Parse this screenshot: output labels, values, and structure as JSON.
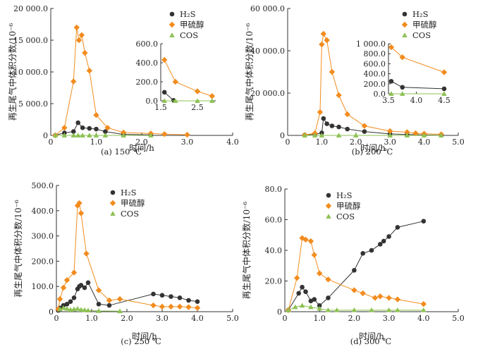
{
  "colors": {
    "h2s": "#333333",
    "methanethiol": "#f28c1e",
    "cos": "#8cc152",
    "axis": "#333333"
  },
  "legend_labels": [
    "H₂S",
    "甲硫醇",
    "COS"
  ],
  "chart_data": [
    {
      "type": "line",
      "caption": "(a) 150 ℃",
      "xlabel": "时间/h",
      "ylabel": "再生尾气中体积分数/10⁻⁶",
      "xlim": [
        0,
        4
      ],
      "ylim": [
        0,
        20000
      ],
      "xticks": [
        "0",
        "1.0",
        "2.0",
        "3.0",
        "4.0"
      ],
      "yticks": [
        "0",
        "5 000.0",
        "10 000.0",
        "15 000.0",
        "20 000.0"
      ],
      "legend_position": "top-right",
      "series": [
        {
          "name": "H₂S",
          "x": [
            0.1,
            0.3,
            0.5,
            0.6,
            0.7,
            0.85,
            1.0,
            1.2,
            1.6,
            2.2
          ],
          "y": [
            10,
            400,
            600,
            2000,
            1200,
            1100,
            1000,
            600,
            150,
            80
          ]
        },
        {
          "name": "甲硫醇",
          "x": [
            0.1,
            0.3,
            0.5,
            0.57,
            0.62,
            0.68,
            0.75,
            0.85,
            1.0,
            1.25,
            1.6,
            2.2,
            2.5,
            3.0
          ],
          "y": [
            10,
            1200,
            8500,
            17000,
            15000,
            15800,
            13000,
            10200,
            3200,
            1200,
            450,
            300,
            200,
            100
          ]
        },
        {
          "name": "COS",
          "x": [
            0.1,
            0.3,
            0.5,
            0.6,
            0.7,
            0.85,
            1.0,
            1.2,
            1.6,
            2.2
          ],
          "y": [
            0,
            0,
            0,
            0,
            0,
            0,
            0,
            0,
            0,
            0
          ]
        }
      ],
      "inset": {
        "xlim": [
          1.5,
          3.0
        ],
        "ylim": [
          0,
          600
        ],
        "xticks": [
          "1.5",
          "2.5"
        ],
        "yticks": [
          "0.0",
          "200.0",
          "400.0",
          "600.0"
        ],
        "series": [
          {
            "name": "H₂S",
            "x": [
              1.6,
              1.85
            ],
            "y": [
              90,
              5
            ]
          },
          {
            "name": "甲硫醇",
            "x": [
              1.6,
              1.9,
              2.5,
              2.9
            ],
            "y": [
              430,
              200,
              100,
              50
            ]
          },
          {
            "name": "COS",
            "x": [
              1.6,
              1.9,
              2.5,
              2.9
            ],
            "y": [
              0,
              0,
              0,
              0
            ]
          }
        ]
      }
    },
    {
      "type": "line",
      "caption": "(b) 200 ℃",
      "xlabel": "时间/h",
      "ylabel": "再生尾气中体积分数/10⁻⁶",
      "xlim": [
        0,
        5
      ],
      "ylim": [
        0,
        60000
      ],
      "xticks": [
        "0",
        "1.0",
        "2.0",
        "3.0",
        "4.0",
        "5.0"
      ],
      "yticks": [
        "0",
        "20 000.0",
        "40 000.0",
        "60 000.0"
      ],
      "legend_position": "top-right",
      "series": [
        {
          "name": "H₂S",
          "x": [
            0.5,
            0.8,
            1.0,
            1.05,
            1.15,
            1.3,
            1.5,
            1.75,
            2.25,
            3.0,
            3.5,
            4.0,
            4.5
          ],
          "y": [
            200,
            500,
            1200,
            8000,
            5500,
            4500,
            4000,
            3000,
            1800,
            700,
            400,
            200,
            100
          ]
        },
        {
          "name": "甲硫醇",
          "x": [
            0.5,
            0.8,
            0.95,
            1.0,
            1.05,
            1.15,
            1.3,
            1.5,
            1.75,
            2.25,
            3.0,
            3.5,
            3.75,
            4.0,
            4.5
          ],
          "y": [
            200,
            1000,
            11000,
            43000,
            48000,
            45000,
            30000,
            19000,
            10000,
            4500,
            2000,
            1500,
            1000,
            800,
            500
          ]
        },
        {
          "name": "COS",
          "x": [
            0.5,
            0.8,
            1.0,
            1.5,
            2.0,
            3.0,
            3.5,
            4.0,
            4.5
          ],
          "y": [
            0,
            0,
            0,
            0,
            0,
            0,
            0,
            0,
            0
          ]
        }
      ],
      "inset": {
        "xlim": [
          3.5,
          4.5
        ],
        "ylim": [
          0,
          1000
        ],
        "xticks": [
          "3.5",
          "4.0",
          "4.5"
        ],
        "yticks": [
          "0.0",
          "200.0",
          "400.0",
          "600.0",
          "800.0",
          "1 000.0"
        ],
        "series": [
          {
            "name": "H₂S",
            "x": [
              3.55,
              3.75,
              4.5
            ],
            "y": [
              250,
              130,
              100
            ]
          },
          {
            "name": "甲硫醇",
            "x": [
              3.55,
              3.75,
              4.5
            ],
            "y": [
              930,
              730,
              430
            ]
          },
          {
            "name": "COS",
            "x": [
              3.55,
              3.75,
              4.5
            ],
            "y": [
              0,
              0,
              0
            ]
          }
        ]
      }
    },
    {
      "type": "line",
      "caption": "(c) 250 ℃",
      "xlabel": "时间/h",
      "ylabel": "再生尾气中体积分数/10⁻⁶",
      "xlim": [
        0,
        5
      ],
      "ylim": [
        0,
        500
      ],
      "xticks": [
        "0",
        "1.0",
        "2.0",
        "3.0",
        "4.0",
        "5.0"
      ],
      "yticks": [
        "0",
        "100.0",
        "200.0",
        "300.0",
        "400.0",
        "500.0"
      ],
      "legend_position": "top-right",
      "series": [
        {
          "name": "H₂S",
          "x": [
            0.05,
            0.1,
            0.2,
            0.3,
            0.4,
            0.5,
            0.6,
            0.65,
            0.7,
            0.8,
            0.9,
            1.2,
            1.5,
            2.75,
            3.0,
            3.25,
            3.5,
            3.75,
            4.0
          ],
          "y": [
            5,
            15,
            25,
            30,
            40,
            55,
            90,
            100,
            105,
            95,
            115,
            30,
            25,
            70,
            65,
            60,
            55,
            45,
            40
          ]
        },
        {
          "name": "甲硫醇",
          "x": [
            0.05,
            0.1,
            0.2,
            0.3,
            0.5,
            0.6,
            0.65,
            0.7,
            0.85,
            1.2,
            1.5,
            1.8,
            2.75,
            3.0,
            3.25,
            3.5,
            3.75,
            4.0
          ],
          "y": [
            10,
            50,
            95,
            125,
            155,
            420,
            430,
            390,
            230,
            85,
            45,
            50,
            25,
            20,
            20,
            20,
            18,
            15
          ]
        },
        {
          "name": "COS",
          "x": [
            0.1,
            0.2,
            0.3,
            0.4,
            0.5,
            0.6,
            0.7,
            0.8,
            0.9,
            1.2,
            1.8
          ],
          "y": [
            10,
            15,
            12,
            8,
            10,
            12,
            8,
            7,
            5,
            3,
            2
          ]
        }
      ]
    },
    {
      "type": "line",
      "caption": "(d) 300 ℃",
      "xlabel": "时间/h",
      "ylabel": "再生尾气中体积分数/10⁻⁶",
      "xlim": [
        0,
        5
      ],
      "ylim": [
        0,
        80
      ],
      "xticks": [
        "0",
        "1.0",
        "2.0",
        "3.0",
        "4.0",
        "5.0"
      ],
      "yticks": [
        "0",
        "20.0",
        "40.0",
        "60.0",
        "80.0"
      ],
      "legend_position": "top-right",
      "series": [
        {
          "name": "H₂S",
          "x": [
            0.1,
            0.4,
            0.5,
            0.6,
            0.75,
            0.85,
            1.0,
            1.25,
            2.0,
            2.25,
            2.5,
            2.75,
            2.85,
            3.0,
            3.25,
            4.0
          ],
          "y": [
            1,
            12,
            16,
            13,
            7,
            8,
            4,
            9,
            27,
            38,
            40,
            44,
            46,
            49,
            55,
            59
          ]
        },
        {
          "name": "甲硫醇",
          "x": [
            0.1,
            0.35,
            0.5,
            0.6,
            0.75,
            0.85,
            1.0,
            1.25,
            2.0,
            2.25,
            2.6,
            2.75,
            3.0,
            3.25,
            4.0
          ],
          "y": [
            1,
            22,
            48,
            47,
            46,
            37,
            25,
            21,
            14,
            12,
            9,
            10,
            9,
            8,
            5
          ]
        },
        {
          "name": "COS",
          "x": [
            0.1,
            0.3,
            0.5,
            0.75,
            1.0,
            1.25,
            1.5,
            2.0,
            2.5,
            3.0,
            3.25,
            4.0
          ],
          "y": [
            1,
            3,
            4,
            3,
            2,
            1,
            1,
            1,
            1,
            1,
            1,
            1
          ]
        }
      ]
    }
  ]
}
